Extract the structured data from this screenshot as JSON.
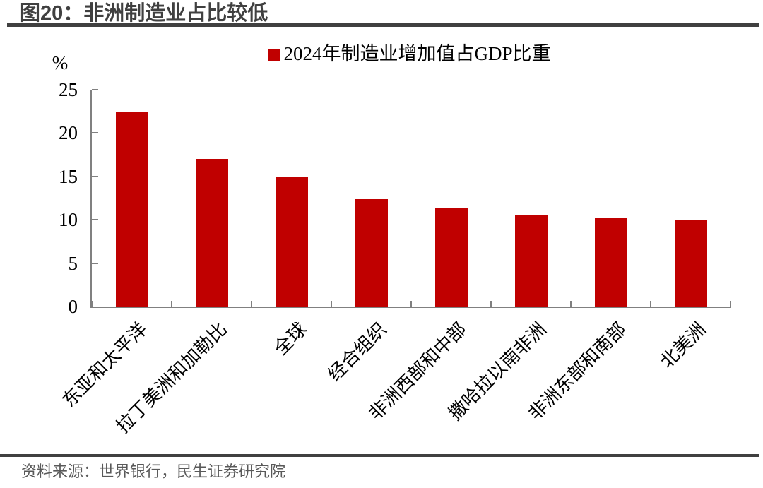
{
  "header": {
    "title": "图20：非洲制造业占比较低"
  },
  "chart_data": {
    "type": "bar",
    "legend": "2024年制造业增加值占GDP比重",
    "legend_position": "top-center",
    "ylabel": "%",
    "categories": [
      "东亚和太平洋",
      "拉丁美洲和加勒比",
      "全球",
      "经合组织",
      "非洲西部和中部",
      "撒哈拉以南非洲",
      "非洲东部和南部",
      "北美洲"
    ],
    "values": [
      22.4,
      17.0,
      15.0,
      12.4,
      11.4,
      10.6,
      10.2,
      9.9
    ],
    "ylim": [
      0,
      25
    ],
    "yticks": [
      0,
      5,
      10,
      15,
      20,
      25
    ],
    "grid": false,
    "bar_color": "#C00000",
    "axis_color": "#808080",
    "title_color": "#404040",
    "source_color": "#595959"
  },
  "footer": {
    "source": "资料来源：世界银行，民生证券研究院"
  }
}
